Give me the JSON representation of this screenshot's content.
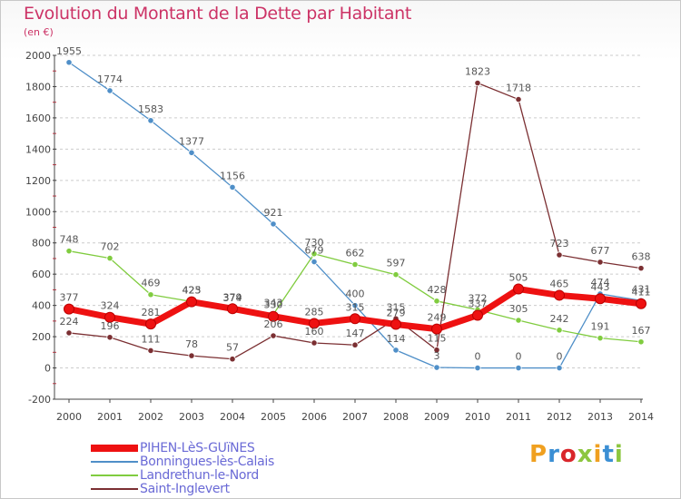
{
  "page": {
    "title": "Evolution du Montant de la Dette par Habitant",
    "unit": "(en €)",
    "brand": "Proxiti"
  },
  "colors": {
    "title": "#cc3366",
    "legend_text": "#6a6ad6",
    "axis": "#444444",
    "grid": "#cccccc",
    "brand_letters": [
      "#f0a020",
      "#3b8fd4",
      "#d9262b",
      "#8cc63f",
      "#f0a020",
      "#3b8fd4",
      "#8cc63f"
    ]
  },
  "chart_data": {
    "type": "line",
    "x": [
      2000,
      2001,
      2002,
      2003,
      2004,
      2005,
      2006,
      2007,
      2008,
      2009,
      2010,
      2011,
      2012,
      2013,
      2014
    ],
    "ylim": [
      -200,
      2000
    ],
    "yticks": [
      -200,
      0,
      200,
      400,
      600,
      800,
      1000,
      1200,
      1400,
      1600,
      1800,
      2000
    ],
    "grid": "horizontal dashed",
    "legend_position": "bottom-left",
    "series": [
      {
        "name": "Bonningues-lès-Calais",
        "color": "#4f8fc8",
        "values": [
          1955,
          1774,
          1583,
          1377,
          1156,
          921,
          679,
          400,
          114,
          3,
          0,
          0,
          0,
          474,
          431
        ]
      },
      {
        "name": "Landrethun-le-Nord",
        "color": "#80cc3f",
        "values": [
          748,
          702,
          469,
          425,
          374,
          343,
          730,
          662,
          597,
          428,
          372,
          305,
          242,
          191,
          167
        ]
      },
      {
        "name": "Saint-Inglevert",
        "color": "#7b2f32",
        "values": [
          224,
          196,
          111,
          78,
          57,
          206,
          160,
          147,
          315,
          115,
          1823,
          1718,
          723,
          677,
          638
        ]
      },
      {
        "name": "PIHEN-LèS-GUïNES",
        "color": "#ee1111",
        "values": [
          377,
          324,
          281,
          423,
          379,
          330,
          285,
          315,
          279,
          249,
          337,
          505,
          465,
          443,
          411
        ]
      }
    ]
  }
}
